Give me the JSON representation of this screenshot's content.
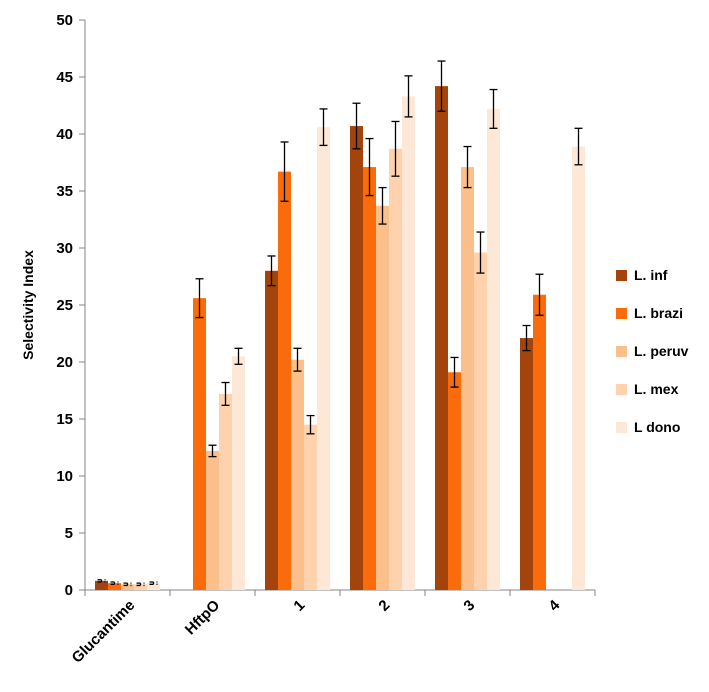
{
  "chart_data": {
    "type": "bar",
    "title": "",
    "xlabel": "",
    "ylabel": "Selectivity Index",
    "ylim": [
      0,
      50
    ],
    "yticks": [
      0,
      5,
      10,
      15,
      20,
      25,
      30,
      35,
      40,
      45,
      50
    ],
    "categories": [
      "Glucantime",
      "HftpO",
      "1",
      "2",
      "3",
      "4"
    ],
    "series": [
      {
        "name": "L. inf",
        "color": "#a3440c",
        "values": [
          0.8,
          null,
          28.0,
          40.7,
          44.2,
          22.1
        ],
        "errors": [
          0.1,
          null,
          1.3,
          2.0,
          2.2,
          1.1
        ]
      },
      {
        "name": "L. brazi",
        "color": "#fa6b0c",
        "values": [
          0.6,
          25.6,
          36.7,
          37.1,
          19.1,
          25.9
        ],
        "errors": [
          0.1,
          1.7,
          2.6,
          2.5,
          1.3,
          1.8
        ]
      },
      {
        "name": "L. peruv",
        "color": "#fbbf8c",
        "values": [
          0.5,
          12.2,
          20.2,
          33.7,
          37.1,
          null
        ],
        "errors": [
          0.1,
          0.5,
          1.0,
          1.6,
          1.8,
          null
        ]
      },
      {
        "name": "L. mex",
        "color": "#fdd2ac",
        "values": [
          0.5,
          17.2,
          14.5,
          38.7,
          29.6,
          null
        ],
        "errors": [
          0.1,
          1.0,
          0.8,
          2.4,
          1.8,
          null
        ]
      },
      {
        "name": "L dono",
        "color": "#fde8d8",
        "values": [
          0.6,
          20.5,
          40.6,
          43.3,
          42.2,
          38.9
        ],
        "errors": [
          0.1,
          0.7,
          1.6,
          1.8,
          1.7,
          1.6
        ]
      }
    ],
    "legend_position": "right",
    "grid": false
  }
}
